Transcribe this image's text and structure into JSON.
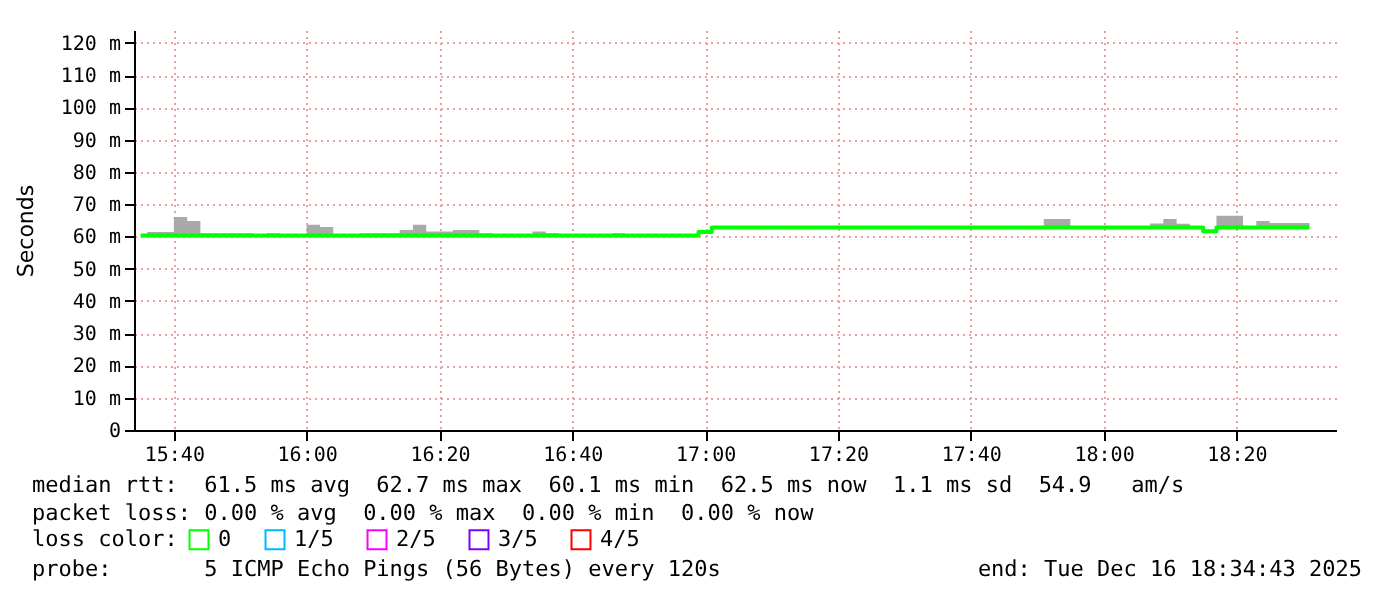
{
  "chart_data": {
    "type": "step",
    "ylabel": "Seconds",
    "x": [
      "2025-12-16T15:35",
      "2025-12-16T15:36",
      "2025-12-16T15:40",
      "2025-12-16T15:42",
      "2025-12-16T15:44",
      "2025-12-16T15:52",
      "2025-12-16T15:54",
      "2025-12-16T15:56",
      "2025-12-16T16:00",
      "2025-12-16T16:02",
      "2025-12-16T16:04",
      "2025-12-16T16:08",
      "2025-12-16T16:14",
      "2025-12-16T16:16",
      "2025-12-16T16:18",
      "2025-12-16T16:22",
      "2025-12-16T16:26",
      "2025-12-16T16:28",
      "2025-12-16T16:34",
      "2025-12-16T16:36",
      "2025-12-16T16:38",
      "2025-12-16T16:46",
      "2025-12-16T16:48",
      "2025-12-16T16:59",
      "2025-12-16T17:01",
      "2025-12-16T17:51",
      "2025-12-16T17:55",
      "2025-12-16T18:07",
      "2025-12-16T18:09",
      "2025-12-16T18:11",
      "2025-12-16T18:13",
      "2025-12-16T18:15",
      "2025-12-16T18:17",
      "2025-12-16T18:21",
      "2025-12-16T18:23",
      "2025-12-16T18:25",
      "2025-12-16T18:31"
    ],
    "series": [
      {
        "name": "0",
        "color": "#00ff00",
        "values": [
          60.3,
          60.3,
          60.3,
          60.3,
          60.3,
          60.3,
          60.3,
          60.3,
          60.3,
          60.3,
          60.3,
          60.3,
          60.3,
          60.3,
          60.3,
          60.3,
          60.3,
          60.3,
          60.3,
          60.3,
          60.3,
          60.3,
          60.3,
          61.4,
          62.8,
          62.8,
          62.8,
          62.8,
          62.8,
          62.8,
          62.8,
          61.6,
          62.8,
          62.8,
          62.8,
          62.8,
          62.8
        ],
        "lower": [
          60.3,
          60.3,
          60.3,
          60.3,
          60.3,
          60.3,
          60.3,
          60.3,
          60.3,
          60.3,
          60.3,
          60.3,
          60.3,
          60.3,
          60.3,
          60.3,
          60.3,
          60.3,
          60.3,
          60.3,
          60.3,
          60.3,
          60.3,
          61.4,
          62.8,
          62.8,
          62.8,
          62.8,
          62.8,
          62.8,
          62.8,
          61.6,
          62.8,
          62.8,
          62.8,
          62.8,
          62.8
        ],
        "upper": [
          60.3,
          61.4,
          66,
          64.8,
          61,
          60.3,
          61,
          60.3,
          63.6,
          62.9,
          60.3,
          61,
          62,
          63.6,
          61.5,
          62,
          61,
          60.3,
          61.5,
          61,
          60.3,
          61,
          60.3,
          61.4,
          62.8,
          65.4,
          62.8,
          64,
          65.4,
          63.9,
          62.8,
          61.6,
          66.4,
          62.8,
          64.8,
          64.2,
          64.2
        ]
      },
      {
        "name": "1/5",
        "color": "#00b8ff",
        "values": [
          null,
          null,
          null,
          null,
          null,
          null,
          null,
          null,
          null,
          null,
          null,
          null,
          null,
          null,
          null,
          null,
          null,
          null,
          null,
          null,
          null,
          null,
          null,
          null,
          null,
          null,
          null,
          null,
          null,
          null,
          null,
          null,
          null,
          null,
          null,
          null,
          null
        ]
      },
      {
        "name": "2/5",
        "color": "#ff00ff",
        "values": [
          null,
          null,
          null,
          null,
          null,
          null,
          null,
          null,
          null,
          null,
          null,
          null,
          null,
          null,
          null,
          null,
          null,
          null,
          null,
          null,
          null,
          null,
          null,
          null,
          null,
          null,
          null,
          null,
          null,
          null,
          null,
          null,
          null,
          null,
          null,
          null,
          null
        ]
      },
      {
        "name": "3/5",
        "color": "#7b00ff",
        "values": [
          null,
          null,
          null,
          null,
          null,
          null,
          null,
          null,
          null,
          null,
          null,
          null,
          null,
          null,
          null,
          null,
          null,
          null,
          null,
          null,
          null,
          null,
          null,
          null,
          null,
          null,
          null,
          null,
          null,
          null,
          null,
          null,
          null,
          null,
          null,
          null,
          null
        ]
      },
      {
        "name": "4/5",
        "color": "#ff0000",
        "values": [
          null,
          null,
          null,
          null,
          null,
          null,
          null,
          null,
          null,
          null,
          null,
          null,
          null,
          null,
          null,
          null,
          null,
          null,
          null,
          null,
          null,
          null,
          null,
          null,
          null,
          null,
          null,
          null,
          null,
          null,
          null,
          null,
          null,
          null,
          null,
          null,
          null
        ]
      }
    ],
    "legend_title": "loss color:",
    "legend": "bottom",
    "xlim": [
      "2025-12-16T15:34",
      "2025-12-16T18:35"
    ],
    "xticks": [
      {
        "value": "2025-12-16T15:40",
        "label": "15:40"
      },
      {
        "value": "2025-12-16T16:00",
        "label": "16:00"
      },
      {
        "value": "2025-12-16T16:20",
        "label": "16:20"
      },
      {
        "value": "2025-12-16T16:40",
        "label": "16:40"
      },
      {
        "value": "2025-12-16T17:00",
        "label": "17:00"
      },
      {
        "value": "2025-12-16T17:20",
        "label": "17:20"
      },
      {
        "value": "2025-12-16T17:40",
        "label": "17:40"
      },
      {
        "value": "2025-12-16T18:00",
        "label": "18:00"
      },
      {
        "value": "2025-12-16T18:20",
        "label": "18:20"
      }
    ],
    "ylim": [
      0,
      124
    ],
    "yticks": [
      0,
      {
        "value": 10,
        "label": "10 m"
      },
      {
        "value": 20,
        "label": "20 m"
      },
      {
        "value": 30,
        "label": "30 m"
      },
      {
        "value": 40,
        "label": "40 m"
      },
      {
        "value": 50,
        "label": "50 m"
      },
      {
        "value": 60,
        "label": "60 m"
      },
      {
        "value": 70,
        "label": "70 m"
      },
      {
        "value": 80,
        "label": "80 m"
      },
      {
        "value": 90,
        "label": "90 m"
      },
      {
        "value": 100,
        "label": "100 m"
      },
      {
        "value": 110,
        "label": "110 m"
      },
      {
        "value": 120,
        "label": "120 m"
      }
    ],
    "grid": true,
    "annotations": [
      "median rtt:  61.5 ms avg  62.7 ms max  60.1 ms min  62.5 ms now  1.1 ms sd  54.9   am/s",
      "packet loss: 0.00 % avg  0.00 % max  0.00 % min  0.00 % now",
      "probe:       5 ICMP Echo Pings (56 Bytes) every 120s",
      "end: Tue Dec 16 18:34:43 2025"
    ]
  }
}
